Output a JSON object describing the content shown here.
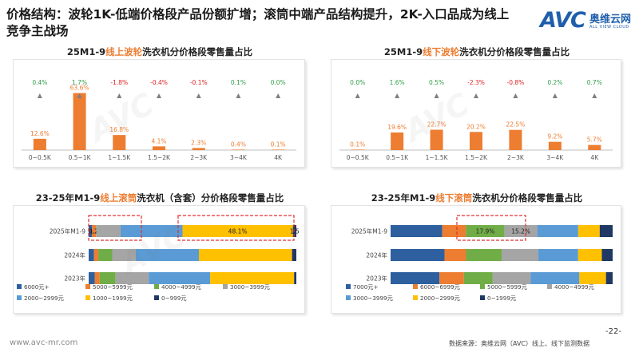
{
  "page": {
    "title": "价格结构：波轮1K-低端价格段产品份额扩增；滚筒中端产品结构提升，2K-入口品成为线上竞争主战场",
    "logo_text": "AVC",
    "logo_cn": "奥维云网",
    "logo_en": "ALL VIEW CLOUD",
    "url": "www.avc-mr.com",
    "source": "数据来源：奥维云网（AVC）线上、线下监测数据",
    "page_number": "-22-",
    "colors": {
      "orange": "#ed7d31",
      "blue": "#5b9bd5",
      "gray_dark": "#595959",
      "red_dashed": "#e03030"
    }
  },
  "chart_data": [
    {
      "type": "bar",
      "title_pre": "25M1-9",
      "title_hl": "线上波轮",
      "title_post": "洗衣机分价格段零售量占比",
      "categories": [
        "0~0.5K",
        "0.5~1K",
        "1~1.5K",
        "1.5~2K",
        "2~3K",
        "3~4K",
        "4K"
      ],
      "values": [
        12.6,
        63.6,
        16.8,
        4.1,
        2.3,
        0.4,
        0.1
      ],
      "value_labels": [
        "12.6%",
        "63.6%",
        "16.8%",
        "4.1%",
        "2.3%",
        "0.4%",
        "0.1%"
      ],
      "changes": [
        "0.4%",
        "1.7%",
        "-1.8%",
        "-0.4%",
        "-0.1%",
        "0.1%",
        "0.0%"
      ],
      "ylim": [
        0,
        70
      ]
    },
    {
      "type": "bar",
      "title_pre": "25M1-9",
      "title_hl": "线下波轮",
      "title_post": "洗衣机分价格段零售量占比",
      "categories": [
        "0~0.5K",
        "0.5~1K",
        "1~1.5K",
        "1.5~2K",
        "2~3K",
        "3~4K",
        "4K"
      ],
      "values": [
        0.1,
        19.6,
        22.7,
        20.2,
        22.5,
        9.2,
        5.7
      ],
      "value_labels": [
        "0.1%",
        "19.6%",
        "22.7%",
        "20.2%",
        "22.5%",
        "9.2%",
        "5.7%"
      ],
      "changes": [
        "0.0%",
        "1.6%",
        "0.5%",
        "-2.3%",
        "-0.8%",
        "0.2%",
        "0.7%"
      ],
      "ylim": [
        0,
        70
      ]
    },
    {
      "type": "bar",
      "stacked": true,
      "horizontal": true,
      "title_pre": "23-25年M1-9",
      "title_hl": "线上滚筒",
      "title_post": "洗衣机（含套）分价格段零售量占比",
      "categories": [
        "2025年M1-9",
        "2024年",
        "2023年"
      ],
      "series": [
        {
          "name": "6000元+",
          "color": "#2e5f9e",
          "values": [
            1.5,
            2.5,
            2.8
          ]
        },
        {
          "name": "5000~5999元",
          "color": "#ed7d31",
          "values": [
            1.7,
            2.0,
            2.2
          ]
        },
        {
          "name": "4000~4999元",
          "color": "#70ad47",
          "values": [
            0.2,
            6.5,
            7.2
          ]
        },
        {
          "name": "3000~3999元",
          "color": "#a5a5a5",
          "values": [
            10.5,
            11.0,
            15.0
          ]
        },
        {
          "name": "2000~2999元",
          "color": "#5b9bd5",
          "values": [
            27.0,
            29.5,
            27.8
          ]
        },
        {
          "name": "1000~1999元",
          "color": "#ffc000",
          "values": [
            48.1,
            43.5,
            38.0
          ]
        },
        {
          "name": "0~999元",
          "color": "#1f3864",
          "values": [
            1.5,
            2.0,
            1.0
          ]
        }
      ],
      "bar_labels": [
        {
          "row": 0,
          "series": 1,
          "text": "1.7"
        },
        {
          "row": 0,
          "series": 2,
          "text": "0.2%"
        },
        {
          "row": 0,
          "series": 5,
          "text": "48.1%"
        },
        {
          "row": 0,
          "series": 6,
          "text": "1.5"
        }
      ],
      "xlim": [
        0,
        100
      ]
    },
    {
      "type": "bar",
      "stacked": true,
      "horizontal": true,
      "title_pre": "23-25年M1-9",
      "title_hl": "线下滚筒",
      "title_post": "洗衣机分价格段零售量占比",
      "categories": [
        "2025年M1-9",
        "2024年",
        "2023年"
      ],
      "series": [
        {
          "name": "7000元+",
          "color": "#2e5f9e",
          "values": [
            24.0,
            25.0,
            22.0
          ]
        },
        {
          "name": "6000~6999元",
          "color": "#ed7d31",
          "values": [
            11.0,
            10.0,
            11.0
          ]
        },
        {
          "name": "5000~5999元",
          "color": "#70ad47",
          "values": [
            17.9,
            16.5,
            13.0
          ]
        },
        {
          "name": "4000~4999元",
          "color": "#a5a5a5",
          "values": [
            15.2,
            17.0,
            17.0
          ]
        },
        {
          "name": "3000~3999元",
          "color": "#5b9bd5",
          "values": [
            19.0,
            18.5,
            22.0
          ]
        },
        {
          "name": "2000~2999元",
          "color": "#ffc000",
          "values": [
            10.0,
            11.0,
            12.0
          ]
        },
        {
          "name": "0~1999元",
          "color": "#1f3864",
          "values": [
            6.0,
            5.0,
            3.0
          ]
        }
      ],
      "bar_labels": [
        {
          "row": 0,
          "series": 2,
          "text": "17.9%"
        },
        {
          "row": 0,
          "series": 3,
          "text": "15.2%"
        }
      ],
      "xlim": [
        0,
        100
      ]
    }
  ]
}
